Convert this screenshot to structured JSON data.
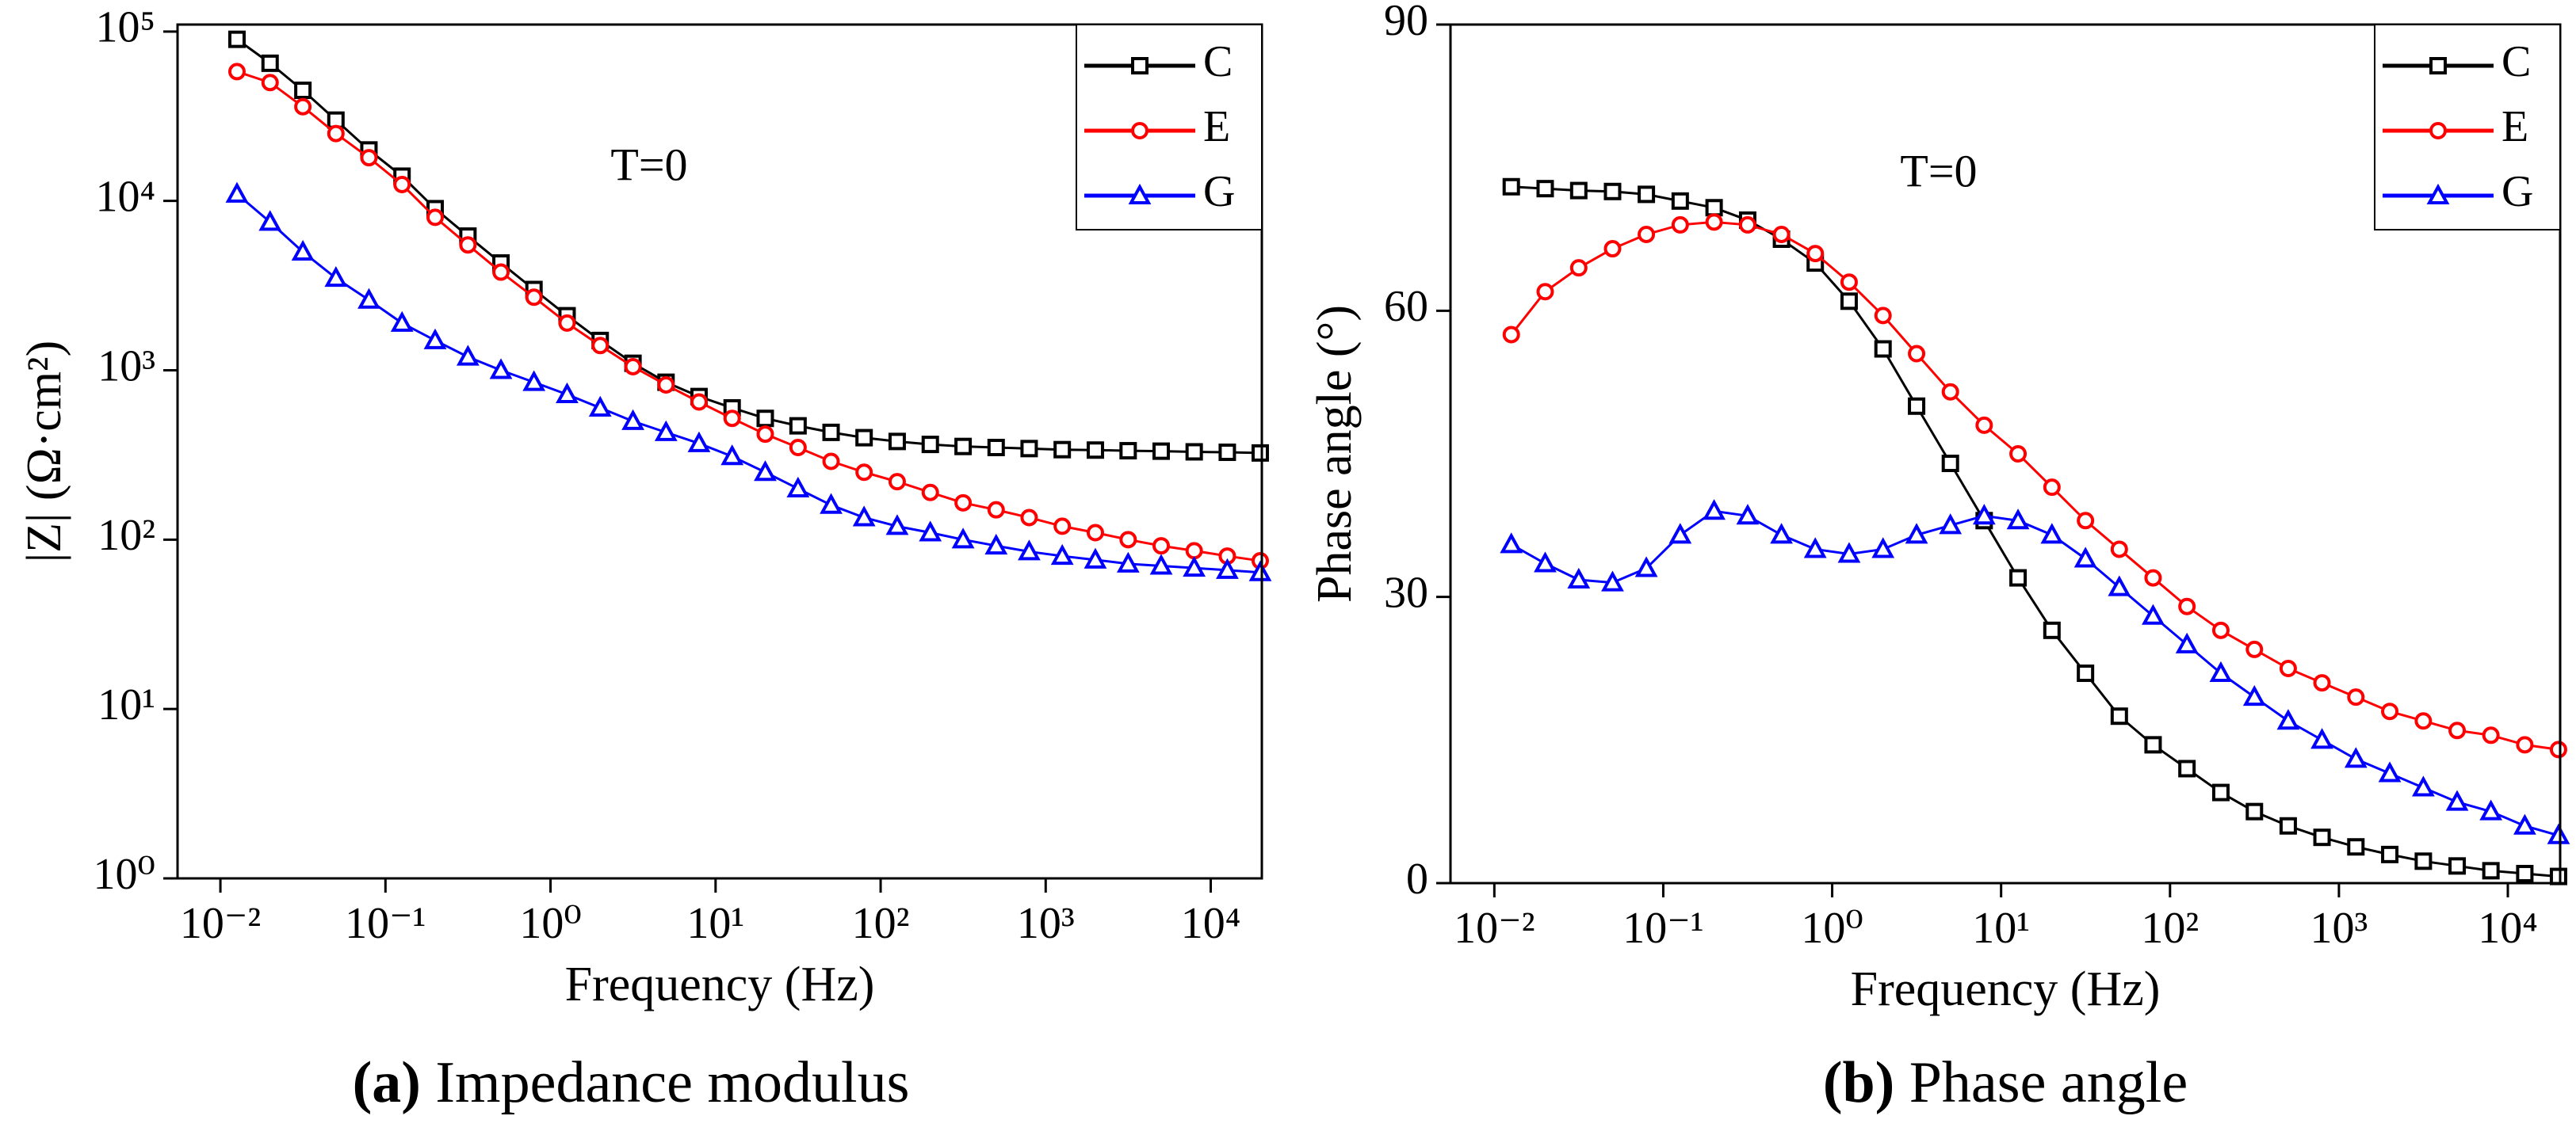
{
  "chart_data": [
    {
      "type": "line",
      "log_x": true,
      "log_y": true,
      "xlabel": "Frequency (Hz)",
      "ylabel": "|Z| (Ω·cm²)",
      "annotation": "T=0",
      "caption_label": "(a)",
      "caption": "Impedance modulus",
      "legend": "upper right",
      "x": [
        0.0126,
        0.02,
        0.0316,
        0.0501,
        0.0794,
        0.126,
        0.2,
        0.316,
        0.501,
        0.794,
        1.26,
        2,
        3.16,
        5.01,
        7.94,
        12.6,
        20,
        31.6,
        50.1,
        79.4,
        126,
        200,
        316,
        501,
        794,
        1260,
        2000,
        3160,
        5010,
        7940,
        12600,
        19950
      ],
      "xlim": [
        0.0055,
        20400
      ],
      "xticks": [
        {
          "value": 0.01,
          "label": "10⁻²"
        },
        {
          "value": 0.1,
          "label": "10⁻¹"
        },
        {
          "value": 1,
          "label": "10⁰"
        },
        {
          "value": 10,
          "label": "10¹"
        },
        {
          "value": 100,
          "label": "10²"
        },
        {
          "value": 1000,
          "label": "10³"
        },
        {
          "value": 10000,
          "label": "10⁴"
        }
      ],
      "ylim": [
        1,
        110000
      ],
      "yticks": [
        {
          "value": 1,
          "label": "10⁰"
        },
        {
          "value": 10,
          "label": "10¹"
        },
        {
          "value": 100,
          "label": "10²"
        },
        {
          "value": 1000,
          "label": "10³"
        },
        {
          "value": 10000,
          "label": "10⁴"
        },
        {
          "value": 100000,
          "label": "10⁵"
        }
      ],
      "series": [
        {
          "name": "C",
          "color": "#000000",
          "marker": "square",
          "values": [
            90000,
            65000,
            45000,
            30000,
            20000,
            14000,
            9000,
            6200,
            4300,
            3000,
            2100,
            1500,
            1100,
            850,
            700,
            600,
            520,
            470,
            430,
            400,
            380,
            365,
            355,
            350,
            345,
            340,
            338,
            335,
            333,
            330,
            328,
            325
          ]
        },
        {
          "name": "E",
          "color": "#ff0000",
          "marker": "circle",
          "values": [
            58000,
            50000,
            36000,
            25000,
            18000,
            12500,
            8000,
            5500,
            3800,
            2700,
            1900,
            1400,
            1050,
            820,
            650,
            520,
            420,
            350,
            290,
            250,
            220,
            190,
            165,
            150,
            135,
            120,
            110,
            100,
            92,
            86,
            80,
            75
          ]
        },
        {
          "name": "G",
          "color": "#0000ff",
          "marker": "triangle",
          "values": [
            11000,
            7500,
            5000,
            3500,
            2600,
            1900,
            1500,
            1200,
            1000,
            850,
            720,
            600,
            500,
            430,
            370,
            310,
            250,
            200,
            160,
            135,
            120,
            110,
            100,
            92,
            85,
            80,
            76,
            72,
            70,
            68,
            66,
            64
          ]
        }
      ]
    },
    {
      "type": "line",
      "log_x": true,
      "log_y": false,
      "xlabel": "Frequency (Hz)",
      "ylabel": "Phase angle (°)",
      "annotation": "T=0",
      "caption_label": "(b)",
      "caption": "Phase angle",
      "legend": "upper right",
      "x": [
        0.0126,
        0.02,
        0.0316,
        0.0501,
        0.0794,
        0.126,
        0.2,
        0.316,
        0.501,
        0.794,
        1.26,
        2,
        3.16,
        5.01,
        7.94,
        12.6,
        20,
        31.6,
        50.1,
        79.4,
        126,
        200,
        316,
        501,
        794,
        1260,
        2000,
        3160,
        5010,
        7940,
        12600,
        19950
      ],
      "xlim": [
        0.0055,
        20400
      ],
      "xticks": [
        {
          "value": 0.01,
          "label": "10⁻²"
        },
        {
          "value": 0.1,
          "label": "10⁻¹"
        },
        {
          "value": 1,
          "label": "10⁰"
        },
        {
          "value": 10,
          "label": "10¹"
        },
        {
          "value": 100,
          "label": "10²"
        },
        {
          "value": 1000,
          "label": "10³"
        },
        {
          "value": 10000,
          "label": "10⁴"
        }
      ],
      "ylim": [
        0,
        90
      ],
      "yticks": [
        0,
        30,
        60,
        90
      ],
      "series": [
        {
          "name": "C",
          "color": "#000000",
          "marker": "square",
          "values": [
            73,
            72.8,
            72.6,
            72.5,
            72.2,
            71.5,
            70.8,
            69.5,
            67.5,
            65,
            61,
            56,
            50,
            44,
            38,
            32,
            26.5,
            22,
            17.5,
            14.5,
            12,
            9.5,
            7.5,
            6,
            4.8,
            3.8,
            3,
            2.3,
            1.8,
            1.3,
            1,
            0.7
          ]
        },
        {
          "name": "E",
          "color": "#ff0000",
          "marker": "circle",
          "values": [
            57.5,
            62,
            64.5,
            66.5,
            68,
            69,
            69.3,
            69,
            68,
            66,
            63,
            59.5,
            55.5,
            51.5,
            48,
            45,
            41.5,
            38,
            35,
            32,
            29,
            26.5,
            24.5,
            22.5,
            21,
            19.5,
            18,
            17,
            16,
            15.5,
            14.5,
            14
          ]
        },
        {
          "name": "G",
          "color": "#0000ff",
          "marker": "triangle",
          "values": [
            35.5,
            33.5,
            31.8,
            31.5,
            33,
            36.5,
            39,
            38.5,
            36.5,
            35,
            34.5,
            35,
            36.5,
            37.5,
            38.5,
            38,
            36.5,
            34,
            31,
            28,
            25,
            22,
            19.5,
            17,
            15,
            13,
            11.5,
            10,
            8.5,
            7.5,
            6,
            5
          ]
        }
      ]
    }
  ]
}
